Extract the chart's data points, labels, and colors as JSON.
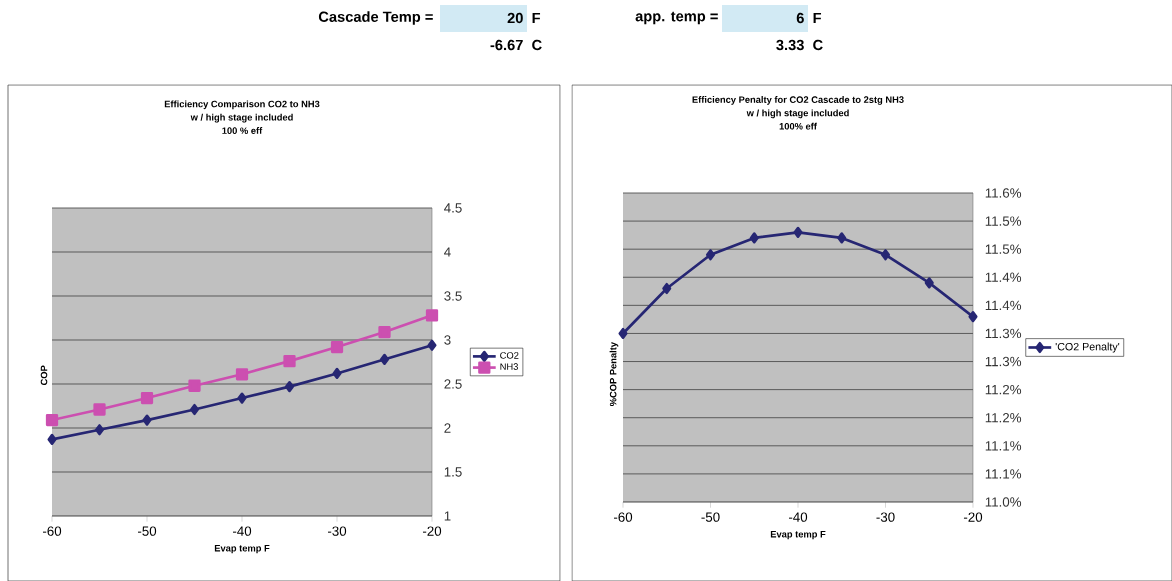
{
  "chart_data": [
    {
      "type": "other",
      "annotations": [
        "Cascade Temp =",
        "20",
        "F",
        "-6.67",
        "C",
        "app. temp =",
        "6",
        "F",
        "3.33",
        "C"
      ]
    },
    {
      "type": "line",
      "title": "Efficiency Comparison CO2 to NH3",
      "subtitle": "w / high stage included",
      "annotations": [
        "100 % eff"
      ],
      "xlabel": "Evap temp F",
      "ylabel": "COP",
      "x": [
        -60,
        -55,
        -50,
        -45,
        -40,
        -35,
        -30,
        -25,
        -20
      ],
      "series": [
        {
          "name": "CO2",
          "color": "#262673",
          "marker": "diamond",
          "values": [
            1.87,
            1.98,
            2.09,
            2.21,
            2.34,
            2.47,
            2.62,
            2.78,
            2.94
          ]
        },
        {
          "name": "NH3",
          "color": "#cc4fb0",
          "marker": "square",
          "values": [
            2.09,
            2.21,
            2.34,
            2.48,
            2.61,
            2.76,
            2.92,
            3.09,
            3.28
          ]
        }
      ],
      "xlim": [
        -60,
        -20
      ],
      "xticks": [
        -60,
        -50,
        -40,
        -30,
        -20
      ],
      "ylim": [
        1,
        4.5
      ],
      "yticks": [
        1,
        1.5,
        2,
        2.5,
        3,
        3.5,
        4,
        4.5
      ],
      "grid": "y",
      "legend": "right",
      "line_style": "solid"
    },
    {
      "type": "line",
      "title": "Efficiency Penalty for CO2 Cascade to 2stg NH3",
      "subtitle": "w / high stage included",
      "annotations": [
        "100% eff"
      ],
      "xlabel": "Evap temp F",
      "ylabel": "%COP Penalty",
      "x": [
        -60,
        -55,
        -50,
        -45,
        -40,
        -35,
        -30,
        -25,
        -20
      ],
      "series": [
        {
          "name": "'CO2 Penalty'",
          "color": "#262673",
          "marker": "diamond",
          "values": [
            11.3,
            11.38,
            11.44,
            11.47,
            11.48,
            11.47,
            11.44,
            11.39,
            11.33
          ]
        }
      ],
      "xlim": [
        -60,
        -20
      ],
      "xticks": [
        -60,
        -50,
        -40,
        -30,
        -20
      ],
      "ylim": [
        11.0,
        11.55
      ],
      "yticks": [
        {
          "value": 11.0,
          "label": "11.0%"
        },
        {
          "value": 11.05,
          "label": "11.1%"
        },
        {
          "value": 11.1,
          "label": "11.1%"
        },
        {
          "value": 11.15,
          "label": "11.2%"
        },
        {
          "value": 11.2,
          "label": "11.2%"
        },
        {
          "value": 11.25,
          "label": "11.3%"
        },
        {
          "value": 11.3,
          "label": "11.3%"
        },
        {
          "value": 11.35,
          "label": "11.4%"
        },
        {
          "value": 11.4,
          "label": "11.4%"
        },
        {
          "value": 11.45,
          "label": "11.5%"
        },
        {
          "value": 11.5,
          "label": "11.5%"
        },
        {
          "value": 11.55,
          "label": "11.6%"
        }
      ],
      "grid": "y",
      "legend": "right",
      "line_style": "solid"
    }
  ]
}
